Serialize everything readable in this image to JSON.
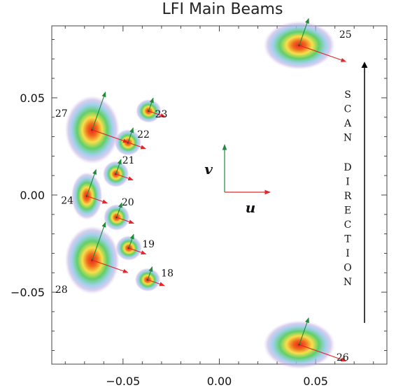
{
  "chart_data": {
    "type": "scatter",
    "title": "LFI Main Beams",
    "xlim": [
      -0.087,
      0.087
    ],
    "ylim": [
      -0.087,
      0.087
    ],
    "x_ticks": [
      -0.05,
      0.0,
      0.05
    ],
    "x_tick_labels": [
      "−0.05",
      "0.00",
      "0.05"
    ],
    "y_ticks": [
      -0.05,
      0.0,
      0.05
    ],
    "y_tick_labels": [
      "−0.05",
      "0.00",
      "0.05"
    ],
    "beams": [
      {
        "label": "18",
        "u": -0.0372,
        "v": -0.0436,
        "su": 0.0035,
        "sv": 0.0032
      },
      {
        "label": "19",
        "u": -0.047,
        "v": -0.0273,
        "su": 0.0036,
        "sv": 0.0034
      },
      {
        "label": "20",
        "u": -0.0533,
        "v": -0.0115,
        "su": 0.0036,
        "sv": 0.0036
      },
      {
        "label": "21",
        "u": -0.0537,
        "v": 0.0108,
        "su": 0.0036,
        "sv": 0.0036
      },
      {
        "label": "22",
        "u": -0.0474,
        "v": 0.027,
        "su": 0.0037,
        "sv": 0.0036
      },
      {
        "label": "23",
        "u": -0.0367,
        "v": 0.0432,
        "su": 0.0035,
        "sv": 0.0032
      },
      {
        "label": "24",
        "u": -0.0688,
        "v": -0.0005,
        "su": 0.0043,
        "sv": 0.0065
      },
      {
        "label": "25",
        "u": 0.0415,
        "v": 0.077,
        "su": 0.0098,
        "sv": 0.0066
      },
      {
        "label": "26",
        "u": 0.0415,
        "v": -0.077,
        "su": 0.0098,
        "sv": 0.0066
      },
      {
        "label": "27",
        "u": -0.066,
        "v": 0.0335,
        "su": 0.0075,
        "sv": 0.0093
      },
      {
        "label": "28",
        "u": -0.066,
        "v": -0.0335,
        "su": 0.0075,
        "sv": 0.0093
      }
    ],
    "axes_indicator": {
      "u_label": "u",
      "v_label": "v"
    },
    "scan_direction_label": "SCAN DIRECTION",
    "colors": {
      "red_arrow": "#e3262b",
      "green_arrow": "#1f8a3a",
      "frame": "#444444"
    }
  }
}
